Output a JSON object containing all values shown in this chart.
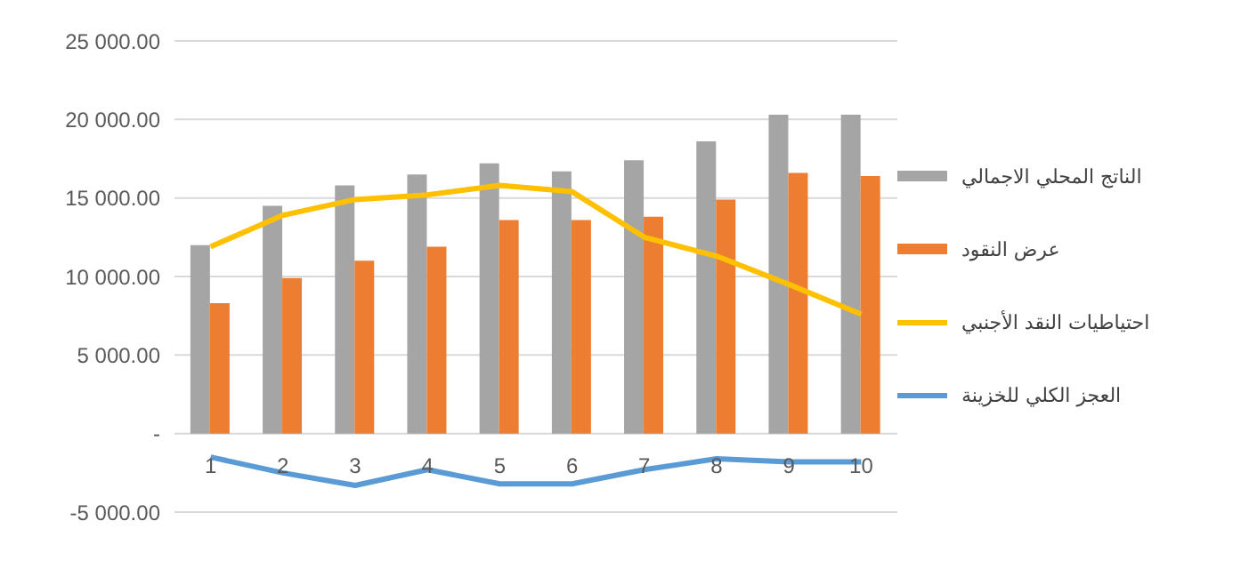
{
  "chart_data": {
    "type": "bar",
    "categories": [
      "1",
      "2",
      "3",
      "4",
      "5",
      "6",
      "7",
      "8",
      "9",
      "10"
    ],
    "series": [
      {
        "name": "الناتج المحلي الاجمالي",
        "color": "#a5a5a5",
        "values": [
          12000,
          14500,
          15800,
          16500,
          17200,
          16700,
          17400,
          18600,
          20300,
          20300
        ]
      },
      {
        "name": "عرض النقود",
        "color": "#ed7d31",
        "values": [
          8300,
          9900,
          11000,
          11900,
          13600,
          13600,
          13800,
          14900,
          16600,
          16400
        ]
      },
      {
        "name": "احتياطيات النقد الأجنبي",
        "type": "line",
        "color": "#ffc000",
        "values": [
          11900,
          13900,
          14900,
          15200,
          15800,
          15400,
          12500,
          11300,
          9500,
          7600
        ]
      },
      {
        "name": "العجز الكلي للخزينة",
        "type": "line",
        "color": "#5b9bd5",
        "values": [
          -1500,
          -2500,
          -3300,
          -2300,
          -3200,
          -3200,
          -2300,
          -1600,
          -1800,
          -1800
        ]
      }
    ],
    "ylim": [
      -5000,
      25000
    ],
    "yticks": [
      {
        "value": -5000,
        "label": "-5 000.00"
      },
      {
        "value": 0,
        "label": "-"
      },
      {
        "value": 5000,
        "label": "5 000.00"
      },
      {
        "value": 10000,
        "label": "10 000.00"
      },
      {
        "value": 15000,
        "label": "15 000.00"
      },
      {
        "value": 20000,
        "label": "20 000.00"
      },
      {
        "value": 25000,
        "label": "25 000.00"
      }
    ],
    "grid": "y",
    "legend": "right",
    "marker": "none"
  }
}
